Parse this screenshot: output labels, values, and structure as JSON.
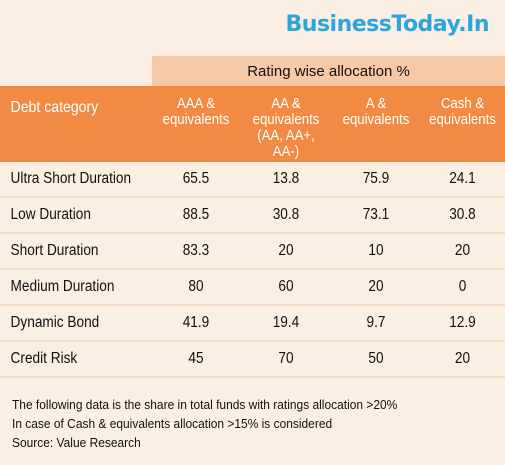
{
  "brand": "BusinessToday.In",
  "table": {
    "super_header": "Rating wise allocation %",
    "col0_header": "Debt category",
    "headers": [
      "AAA &\nequivalents",
      "AA &\nequivalents\n(AA, AA+, AA-)",
      "A &\nequivalents",
      "Cash &\nequivalents"
    ],
    "rows": [
      {
        "category": "Ultra Short Duration",
        "values": [
          "65.5",
          "13.8",
          "75.9",
          "24.1"
        ]
      },
      {
        "category": "Low Duration",
        "values": [
          "88.5",
          "30.8",
          "73.1",
          "30.8"
        ]
      },
      {
        "category": "Short Duration",
        "values": [
          "83.3",
          "20",
          "10",
          "20"
        ]
      },
      {
        "category": "Medium Duration",
        "values": [
          "80",
          "60",
          "20",
          "0"
        ]
      },
      {
        "category": "Dynamic Bond",
        "values": [
          "41.9",
          "19.4",
          "9.7",
          "12.9"
        ]
      },
      {
        "category": "Credit Risk",
        "values": [
          "45",
          "70",
          "50",
          "20"
        ]
      }
    ]
  },
  "notes": [
    "The following data is the share in total funds with ratings allocation >20%",
    "In case of Cash & equivalents allocation >15% is considered",
    "Source: Value Research"
  ]
}
